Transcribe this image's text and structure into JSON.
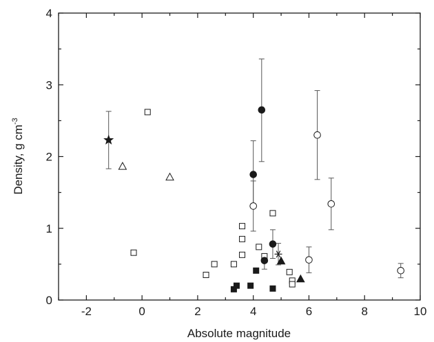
{
  "chart_data": {
    "type": "scatter",
    "title": "",
    "xlabel": "Absolute magnitude",
    "ylabel_text": "Density, g cm",
    "ylabel_superscript": "-3",
    "xlim": [
      -3,
      10
    ],
    "ylim": [
      0,
      4
    ],
    "xticks": [
      -2,
      0,
      2,
      4,
      6,
      8,
      10
    ],
    "yticks": [
      0,
      1,
      2,
      3,
      4
    ],
    "xtick_labels": [
      "-2",
      "0",
      "2",
      "4",
      "6",
      "8",
      "10"
    ],
    "ytick_labels": [
      "0",
      "1",
      "2",
      "3",
      "4"
    ],
    "minor_x_step": 1,
    "minor_y_step": 0.5,
    "grid": false,
    "legend": "none",
    "colors": {
      "axis": "#1a1a1a",
      "marker": "#1a1a1a",
      "errorbar": "#555555",
      "hollow_fill": "#ffffff"
    },
    "series": [
      {
        "marker": "star",
        "filled": true,
        "points": [
          {
            "x": -1.2,
            "y": 2.23,
            "err": [
              0.4,
              0.4
            ]
          }
        ]
      },
      {
        "marker": "triangle",
        "filled": false,
        "points": [
          {
            "x": -0.7,
            "y": 1.86
          },
          {
            "x": 1.0,
            "y": 1.71
          }
        ]
      },
      {
        "marker": "square",
        "filled": false,
        "points": [
          {
            "x": -0.3,
            "y": 0.66
          },
          {
            "x": 0.2,
            "y": 2.62
          },
          {
            "x": 2.3,
            "y": 0.35
          },
          {
            "x": 2.6,
            "y": 0.5
          },
          {
            "x": 3.3,
            "y": 0.5
          },
          {
            "x": 3.6,
            "y": 1.03
          },
          {
            "x": 3.6,
            "y": 0.85
          },
          {
            "x": 3.6,
            "y": 0.63
          },
          {
            "x": 4.2,
            "y": 0.74
          },
          {
            "x": 4.4,
            "y": 0.61
          },
          {
            "x": 4.7,
            "y": 1.21
          },
          {
            "x": 5.3,
            "y": 0.39
          },
          {
            "x": 5.4,
            "y": 0.27
          },
          {
            "x": 5.4,
            "y": 0.22
          }
        ]
      },
      {
        "marker": "square",
        "filled": true,
        "points": [
          {
            "x": 3.3,
            "y": 0.15
          },
          {
            "x": 3.4,
            "y": 0.2
          },
          {
            "x": 3.9,
            "y": 0.2
          },
          {
            "x": 4.1,
            "y": 0.41
          },
          {
            "x": 4.7,
            "y": 0.16
          }
        ]
      },
      {
        "marker": "circle",
        "filled": true,
        "points": [
          {
            "x": 4.0,
            "y": 1.75,
            "err": [
              0.47,
              0.47
            ]
          },
          {
            "x": 4.3,
            "y": 2.65,
            "err": [
              0.72,
              0.71
            ]
          },
          {
            "x": 4.4,
            "y": 0.55,
            "err": [
              0.12,
              0.07
            ]
          },
          {
            "x": 4.7,
            "y": 0.78,
            "err": [
              0.2,
              0.2
            ]
          }
        ]
      },
      {
        "marker": "circle",
        "filled": false,
        "points": [
          {
            "x": 4.0,
            "y": 1.31,
            "err": [
              0.35,
              0.35
            ]
          },
          {
            "x": 6.0,
            "y": 0.56,
            "err": [
              0.18,
              0.18
            ]
          },
          {
            "x": 6.3,
            "y": 2.3,
            "err": [
              0.62,
              0.62
            ]
          },
          {
            "x": 6.8,
            "y": 1.34,
            "err": [
              0.36,
              0.36
            ]
          },
          {
            "x": 9.3,
            "y": 0.41,
            "err": [
              0.1,
              0.1
            ]
          }
        ]
      },
      {
        "marker": "asterisk",
        "filled": true,
        "points": [
          {
            "x": 4.9,
            "y": 0.64,
            "err": [
              0.15,
              0.15
            ]
          }
        ]
      },
      {
        "marker": "triangle",
        "filled": true,
        "points": [
          {
            "x": 5.0,
            "y": 0.54
          },
          {
            "x": 5.7,
            "y": 0.29
          }
        ]
      }
    ]
  }
}
